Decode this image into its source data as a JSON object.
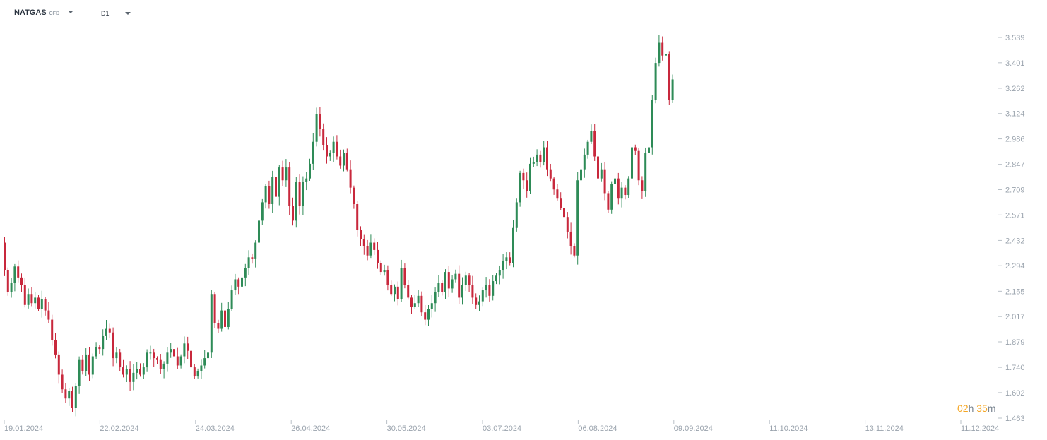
{
  "header": {
    "symbol": "NATGAS",
    "symbol_type": "CFD",
    "timeframe": "D1"
  },
  "countdown": {
    "hours": "02",
    "h": "h",
    "minutes": "35",
    "m": "m"
  },
  "colors": {
    "up": "#2e8b57",
    "down": "#c8283c",
    "axis_text": "#9aa3ad",
    "countdown": "#f5a623"
  },
  "chart_data": {
    "type": "candlestick",
    "title": "",
    "xlabel": "",
    "ylabel": "",
    "ylim": [
      1.463,
      3.6
    ],
    "y_ticks": [
      "3.539",
      "3.401",
      "3.262",
      "3.124",
      "2.986",
      "2.847",
      "2.709",
      "2.571",
      "2.432",
      "2.294",
      "2.155",
      "2.017",
      "1.879",
      "1.740",
      "1.602",
      "1.463"
    ],
    "x_ticks": [
      "19.01.2024",
      "22.02.2024",
      "24.03.2024",
      "26.04.2024",
      "30.05.2024",
      "03.07.2024",
      "06.08.2024",
      "09.09.2024",
      "11.10.2024",
      "13.11.2024",
      "11.12.2024"
    ],
    "grid": false,
    "series_close": [
      2.42,
      2.27,
      2.15,
      2.2,
      2.29,
      2.23,
      2.19,
      2.08,
      2.14,
      2.09,
      2.12,
      2.06,
      2.11,
      2.05,
      2.0,
      1.89,
      1.81,
      1.7,
      1.62,
      1.57,
      1.61,
      1.52,
      1.64,
      1.78,
      1.72,
      1.81,
      1.7,
      1.8,
      1.85,
      1.84,
      1.91,
      1.95,
      1.93,
      1.79,
      1.82,
      1.74,
      1.7,
      1.73,
      1.66,
      1.71,
      1.73,
      1.7,
      1.74,
      1.82,
      1.82,
      1.79,
      1.78,
      1.73,
      1.76,
      1.82,
      1.84,
      1.8,
      1.75,
      1.8,
      1.87,
      1.83,
      1.74,
      1.69,
      1.72,
      1.75,
      1.79,
      1.82,
      2.14,
      1.98,
      1.95,
      2.05,
      1.96,
      2.06,
      2.16,
      2.22,
      2.18,
      2.23,
      2.28,
      2.34,
      2.33,
      2.42,
      2.54,
      2.64,
      2.73,
      2.63,
      2.78,
      2.67,
      2.83,
      2.76,
      2.83,
      2.62,
      2.54,
      2.75,
      2.62,
      2.75,
      2.77,
      2.85,
      2.97,
      3.12,
      3.04,
      2.95,
      2.89,
      2.91,
      2.97,
      2.89,
      2.84,
      2.91,
      2.82,
      2.72,
      2.63,
      2.49,
      2.44,
      2.4,
      2.35,
      2.42,
      2.38,
      2.31,
      2.26,
      2.27,
      2.19,
      2.14,
      2.18,
      2.11,
      2.28,
      2.19,
      2.12,
      2.07,
      2.09,
      2.13,
      2.04,
      2.0,
      2.06,
      2.09,
      2.15,
      2.2,
      2.15,
      2.26,
      2.17,
      2.22,
      2.25,
      2.12,
      2.19,
      2.24,
      2.19,
      2.12,
      2.08,
      2.1,
      2.16,
      2.19,
      2.13,
      2.21,
      2.24,
      2.27,
      2.32,
      2.34,
      2.31,
      2.5,
      2.64,
      2.8,
      2.76,
      2.7,
      2.85,
      2.86,
      2.9,
      2.86,
      2.94,
      2.82,
      2.77,
      2.71,
      2.66,
      2.61,
      2.56,
      2.48,
      2.4,
      2.35,
      2.76,
      2.82,
      2.9,
      2.97,
      3.03,
      2.89,
      2.77,
      2.82,
      2.69,
      2.6,
      2.74,
      2.77,
      2.66,
      2.72,
      2.68,
      2.77,
      2.94,
      2.92,
      2.76,
      2.7,
      2.91,
      2.94,
      3.2,
      3.4,
      3.51,
      3.44,
      3.45,
      3.2,
      3.31
    ]
  }
}
